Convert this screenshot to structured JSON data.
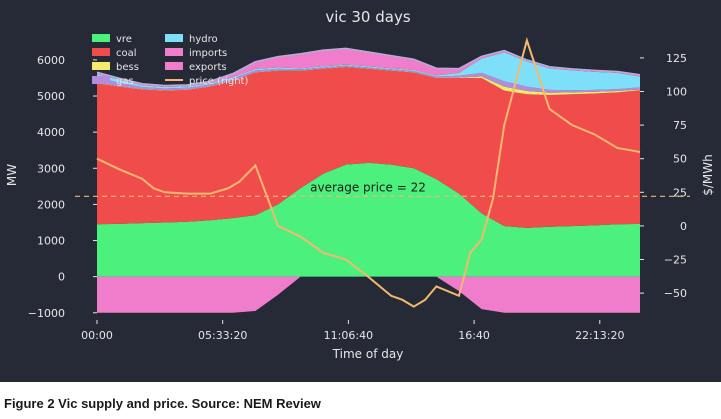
{
  "caption": "Figure 2 Vic  supply and price. Source: NEM Review",
  "chart_data": {
    "type": "area",
    "title": "vic 30 days",
    "xlabel": "Time of day",
    "ylabel": "MW",
    "ylabel_right": "$/MWh",
    "xlim": [
      0,
      24
    ],
    "ylim": [
      -1200,
      6800
    ],
    "ylim_right": [
      -70,
      145
    ],
    "x_ticks": [
      0,
      5.5556,
      11.1111,
      16.6667,
      22.2222
    ],
    "x_tick_labels": [
      "00:00",
      "05:33:20",
      "11:06:40",
      "16:40",
      "22:13:20"
    ],
    "y_ticks": [
      -1000,
      0,
      1000,
      2000,
      3000,
      4000,
      5000,
      6000
    ],
    "y_tick_labels": [
      "−1000",
      "0",
      "1000",
      "2000",
      "3000",
      "4000",
      "5000",
      "6000"
    ],
    "y_right_ticks": [
      -50,
      -25,
      0,
      25,
      50,
      75,
      100,
      125
    ],
    "y_right_tick_labels": [
      "−50",
      "−25",
      "0",
      "25",
      "50",
      "75",
      "100",
      "125"
    ],
    "grid": false,
    "legend": "top-left",
    "x": [
      0,
      1,
      2,
      3,
      4,
      5,
      6,
      7,
      8,
      9,
      10,
      11,
      12,
      13,
      14,
      15,
      16,
      17,
      18,
      19,
      20,
      21,
      22,
      23,
      24
    ],
    "series": [
      {
        "name": "vre",
        "color": "#4cf07c",
        "values": [
          1450,
          1460,
          1480,
          1500,
          1520,
          1560,
          1620,
          1700,
          2000,
          2450,
          2850,
          3100,
          3150,
          3100,
          3000,
          2700,
          2300,
          1750,
          1400,
          1350,
          1380,
          1400,
          1420,
          1450,
          1460
        ]
      },
      {
        "name": "coal",
        "color": "#f04c4c",
        "values": [
          3900,
          3800,
          3700,
          3650,
          3650,
          3700,
          3800,
          3950,
          3700,
          3250,
          2900,
          2700,
          2600,
          2600,
          2650,
          2800,
          3200,
          3750,
          3750,
          3700,
          3650,
          3650,
          3650,
          3650,
          3700
        ]
      },
      {
        "name": "bess",
        "color": "#f5ea6c",
        "values": [
          10,
          10,
          10,
          10,
          10,
          10,
          10,
          10,
          10,
          10,
          10,
          10,
          10,
          10,
          10,
          10,
          10,
          40,
          110,
          90,
          60,
          50,
          50,
          40,
          20
        ]
      },
      {
        "name": "gas",
        "color": "#b48cdc",
        "values": [
          150,
          100,
          60,
          50,
          50,
          50,
          50,
          50,
          40,
          30,
          30,
          30,
          30,
          30,
          30,
          30,
          50,
          100,
          150,
          120,
          80,
          60,
          50,
          50,
          60
        ]
      },
      {
        "name": "hydro",
        "color": "#7ee0f8",
        "values": [
          100,
          80,
          50,
          40,
          40,
          40,
          40,
          40,
          40,
          30,
          30,
          30,
          30,
          30,
          30,
          30,
          80,
          400,
          800,
          700,
          600,
          550,
          500,
          450,
          300
        ]
      },
      {
        "name": "imports",
        "color": "#f07ccc",
        "values": [
          50,
          40,
          40,
          40,
          40,
          50,
          100,
          200,
          300,
          400,
          450,
          450,
          400,
          350,
          300,
          200,
          120,
          60,
          50,
          40,
          40,
          40,
          40,
          40,
          50
        ]
      },
      {
        "name": "exports",
        "color": "#f07ccc",
        "values": [
          -1000,
          -1000,
          -1000,
          -1000,
          -1000,
          -1000,
          -1000,
          -950,
          -500,
          0,
          0,
          0,
          0,
          0,
          0,
          0,
          -400,
          -900,
          -1000,
          -1000,
          -1000,
          -1000,
          -1000,
          -1000,
          -1000
        ]
      }
    ],
    "price_series": {
      "name": "price (right)",
      "color": "#f4b870",
      "x": [
        0,
        1,
        2,
        2.5,
        3,
        4,
        5,
        5.8,
        6.3,
        7,
        8,
        9,
        10,
        11,
        12,
        13,
        13.5,
        14,
        14.5,
        15,
        16,
        16.5,
        17,
        17.5,
        18,
        19,
        20,
        21,
        22,
        23,
        24
      ],
      "values": [
        50,
        42,
        35,
        28,
        25,
        24,
        24,
        28,
        33,
        45,
        0,
        -8,
        -20,
        -25,
        -38,
        -52,
        -55,
        -60,
        -55,
        -45,
        -52,
        -20,
        -10,
        20,
        75,
        138,
        87,
        75,
        68,
        58,
        55
      ]
    },
    "average_price": 22,
    "annotation": "average price = 22"
  }
}
